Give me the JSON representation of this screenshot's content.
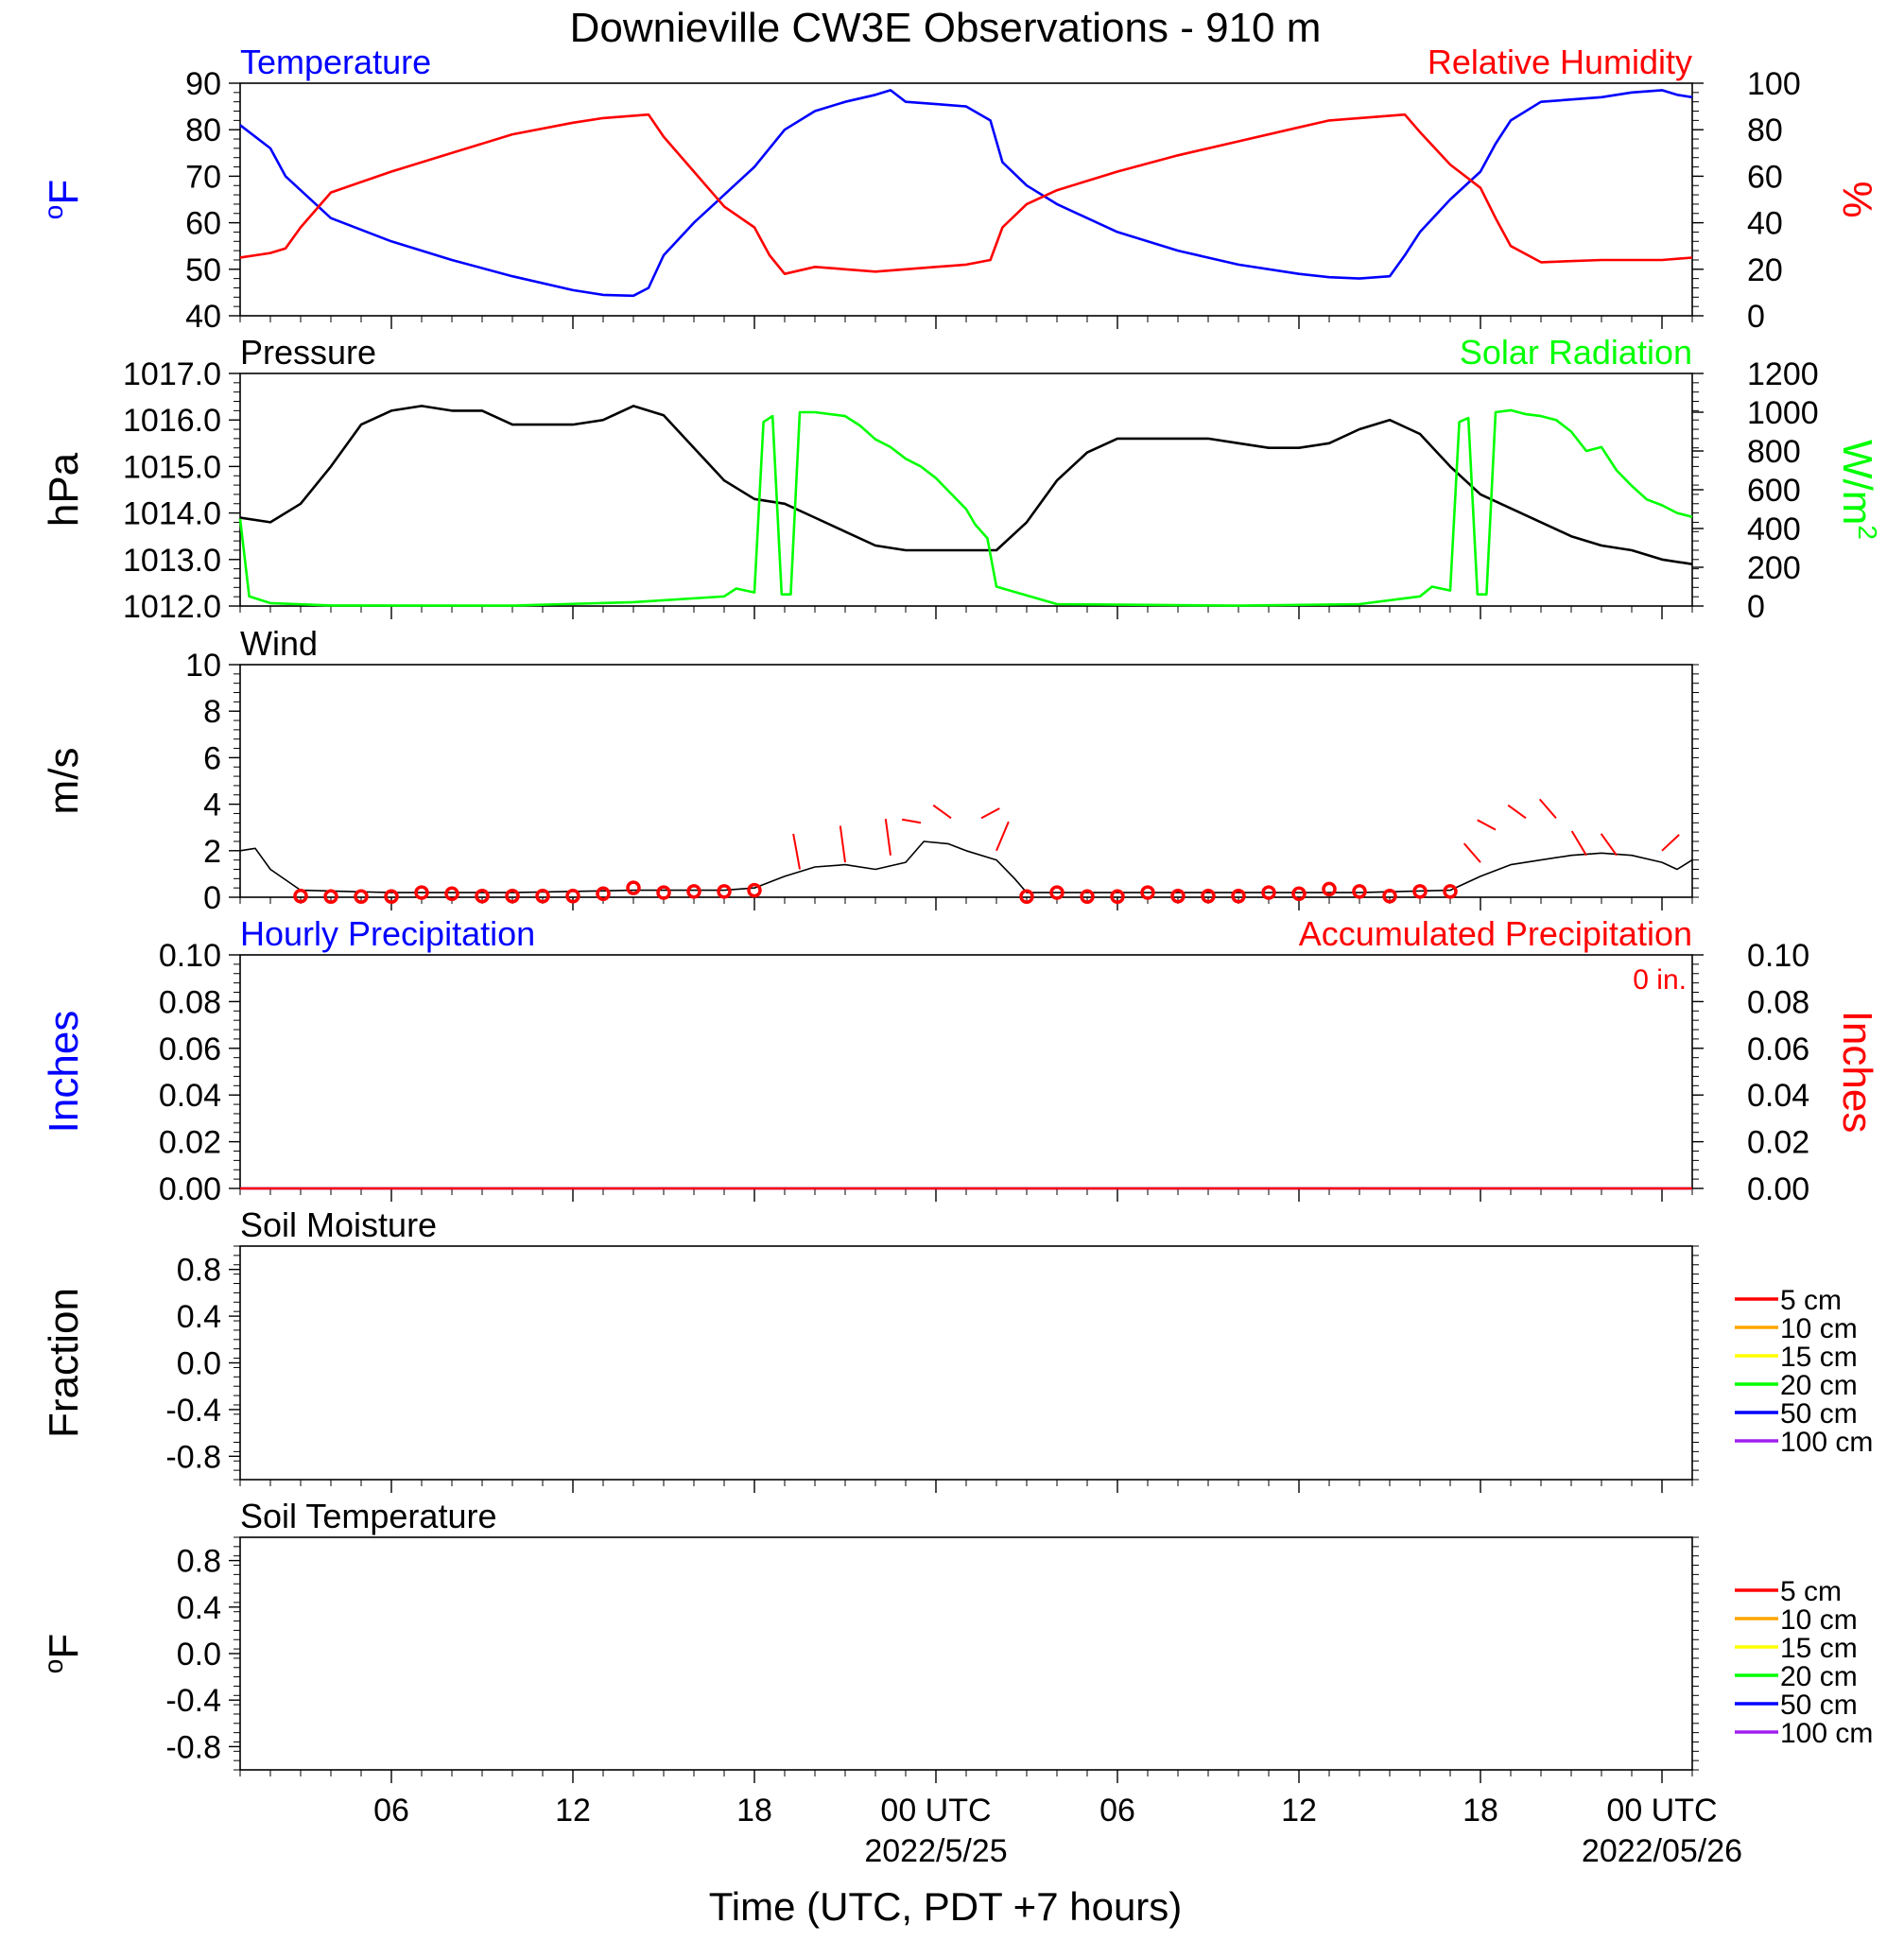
{
  "title": "Downieville CW3E Observations - 910 m",
  "xlabel": "Time (UTC, PDT +7 hours)",
  "time_axis": {
    "range_hours": [
      1,
      49
    ],
    "tick_hours": [
      6,
      12,
      18,
      24,
      30,
      36,
      42,
      48
    ],
    "tick_labels": [
      "06",
      "12",
      "18",
      "00 UTC",
      "06",
      "12",
      "18",
      "00 UTC"
    ],
    "date_labels": [
      {
        "hour": 24,
        "label": "2022/5/25"
      },
      {
        "hour": 48,
        "label": "2022/05/26"
      }
    ]
  },
  "colors": {
    "temperature": "#0000ff",
    "humidity": "#ff0000",
    "pressure": "#000000",
    "solar": "#00ff00",
    "wind": "#000000",
    "barb": "#ff0000",
    "hourly_precip": "#0000ff",
    "accum_precip": "#ff0000"
  },
  "chart_data": [
    {
      "type": "line",
      "panel": "temperature_humidity",
      "title_left": "Temperature",
      "title_right": "Relative Humidity",
      "ylabel_left": "oF",
      "ylabel_right": "%",
      "ylim_left": [
        40,
        90
      ],
      "yticks_left": [
        "40",
        "50",
        "60",
        "70",
        "80",
        "90"
      ],
      "ylim_right": [
        0,
        100
      ],
      "yticks_right": [
        "0",
        "20",
        "40",
        "60",
        "80",
        "100"
      ],
      "series": [
        {
          "name": "Temperature",
          "axis": "left",
          "x": [
            1,
            2,
            2.5,
            3,
            4,
            6,
            8,
            10,
            12,
            13,
            14,
            14.5,
            15,
            16,
            17,
            18,
            19,
            20,
            21,
            22,
            22.5,
            23,
            24,
            25,
            25.8,
            26.2,
            27,
            28,
            30,
            32,
            34,
            36,
            37,
            38,
            39,
            39.5,
            40,
            41,
            42,
            42.5,
            43,
            44,
            46,
            47,
            48,
            48.5,
            49
          ],
          "values": [
            81,
            76,
            70,
            67,
            61,
            56,
            52,
            48.5,
            45.5,
            44.5,
            44.3,
            46,
            53,
            60,
            66,
            72,
            80,
            84,
            86,
            87.5,
            88.5,
            86,
            85.5,
            85,
            82,
            73,
            68,
            64,
            58,
            54,
            51,
            49,
            48.3,
            48,
            48.5,
            53,
            58,
            65,
            71,
            77,
            82,
            86,
            87,
            88,
            88.5,
            87.5,
            87
          ]
        },
        {
          "name": "Relative Humidity",
          "axis": "right",
          "x": [
            1,
            2,
            2.5,
            3,
            4,
            6,
            8,
            10,
            12,
            13,
            14,
            14.5,
            15,
            16,
            17,
            18,
            18.5,
            19,
            20,
            22,
            24,
            25,
            25.8,
            26.2,
            27,
            28,
            30,
            32,
            34,
            36,
            37,
            38,
            39,
            39.5,
            40,
            41,
            42,
            42.5,
            43,
            44,
            46,
            48,
            49
          ],
          "values": [
            25,
            27,
            29,
            38,
            53,
            62,
            70,
            78,
            83,
            85,
            86,
            86.5,
            77,
            62,
            47,
            38,
            26,
            18,
            21,
            19,
            21,
            22,
            24,
            38,
            48,
            54,
            62,
            69,
            75,
            81,
            84,
            85,
            86,
            86.5,
            79,
            65,
            55,
            42,
            30,
            23,
            24,
            24,
            25
          ]
        }
      ]
    },
    {
      "type": "line",
      "panel": "pressure_solar",
      "title_left": "Pressure",
      "title_right": "Solar Radiation",
      "ylabel_left": "hPa",
      "ylabel_right": "W/m2",
      "ylim_left": [
        1012.0,
        1017.0
      ],
      "yticks_left": [
        "1012.0",
        "1013.0",
        "1014.0",
        "1015.0",
        "1016.0",
        "1017.0"
      ],
      "ylim_right": [
        0,
        1200
      ],
      "yticks_right": [
        "0",
        "200",
        "400",
        "600",
        "800",
        "1000",
        "1200"
      ],
      "series": [
        {
          "name": "Pressure",
          "axis": "left",
          "x": [
            1,
            2,
            3,
            4,
            5,
            6,
            7,
            8,
            9,
            10,
            11,
            12,
            13,
            14,
            15,
            16,
            17,
            18,
            19,
            20,
            21,
            22,
            23,
            24,
            25,
            26,
            27,
            28,
            29,
            30,
            31,
            32,
            33,
            34,
            35,
            36,
            37,
            38,
            39,
            40,
            41,
            42,
            43,
            44,
            45,
            46,
            47,
            48,
            49
          ],
          "values": [
            1013.9,
            1013.8,
            1014.2,
            1015.0,
            1015.9,
            1016.2,
            1016.3,
            1016.2,
            1016.2,
            1015.9,
            1015.9,
            1015.9,
            1016.0,
            1016.3,
            1016.1,
            1015.4,
            1014.7,
            1014.3,
            1014.2,
            1013.9,
            1013.6,
            1013.3,
            1013.2,
            1013.2,
            1013.2,
            1013.2,
            1013.8,
            1014.7,
            1015.3,
            1015.6,
            1015.6,
            1015.6,
            1015.6,
            1015.5,
            1015.4,
            1015.4,
            1015.5,
            1015.8,
            1016.0,
            1015.7,
            1015.0,
            1014.4,
            1014.1,
            1013.8,
            1013.5,
            1013.3,
            1013.2,
            1013.0,
            1012.9
          ]
        },
        {
          "name": "Solar Radiation",
          "axis": "right",
          "x": [
            1,
            1.3,
            2,
            4,
            10,
            14,
            17,
            17.4,
            18,
            18.3,
            18.6,
            18.9,
            19.2,
            19.5,
            20,
            21,
            21.5,
            22,
            22.5,
            23,
            23.5,
            24,
            24.5,
            25,
            25.3,
            25.7,
            26,
            28,
            34,
            38,
            40,
            40.4,
            41,
            41.3,
            41.6,
            41.9,
            42.2,
            42.5,
            43,
            43.5,
            44,
            44.5,
            45,
            45.5,
            46,
            46.5,
            47,
            47.5,
            48,
            48.5,
            49
          ],
          "values": [
            450,
            50,
            15,
            3,
            2,
            20,
            50,
            90,
            70,
            950,
            980,
            60,
            60,
            1000,
            1000,
            980,
            930,
            860,
            820,
            760,
            720,
            660,
            580,
            500,
            420,
            350,
            100,
            10,
            2,
            10,
            50,
            100,
            80,
            950,
            970,
            60,
            60,
            1000,
            1010,
            990,
            980,
            960,
            900,
            800,
            820,
            700,
            620,
            550,
            520,
            480,
            460
          ]
        }
      ]
    },
    {
      "type": "line",
      "panel": "wind",
      "title_left": "Wind",
      "ylabel_left": "m/s",
      "ylim_left": [
        0,
        10
      ],
      "yticks_left": [
        "0",
        "2",
        "4",
        "6",
        "8",
        "10"
      ],
      "series": [
        {
          "name": "Wind",
          "axis": "left",
          "x": [
            1,
            1.5,
            2,
            3,
            6,
            10,
            14,
            17,
            18,
            19,
            20,
            21,
            22,
            23,
            23.6,
            24.4,
            25,
            26,
            26.6,
            27,
            30,
            34,
            38,
            41,
            42,
            43,
            44,
            45,
            46,
            47,
            48,
            48.5,
            49
          ],
          "values": [
            2.0,
            2.1,
            1.2,
            0.3,
            0.2,
            0.2,
            0.3,
            0.3,
            0.4,
            0.9,
            1.3,
            1.4,
            1.2,
            1.5,
            2.4,
            2.3,
            2.0,
            1.6,
            0.8,
            0.2,
            0.2,
            0.2,
            0.2,
            0.3,
            0.9,
            1.4,
            1.6,
            1.8,
            1.9,
            1.8,
            1.5,
            1.2,
            1.6
          ]
        }
      ],
      "calm_markers": {
        "x": [
          3,
          4,
          5,
          6,
          7,
          8,
          9,
          10,
          11,
          12,
          13,
          14,
          15,
          16,
          17,
          18,
          27,
          28,
          29,
          30,
          31,
          32,
          33,
          34,
          35,
          36,
          37,
          38,
          39,
          40,
          41
        ],
        "values": [
          0.05,
          0.03,
          0.03,
          0.03,
          0.2,
          0.15,
          0.05,
          0.05,
          0.05,
          0.05,
          0.15,
          0.4,
          0.2,
          0.25,
          0.25,
          0.3,
          0.03,
          0.2,
          0.03,
          0.03,
          0.2,
          0.05,
          0.05,
          0.05,
          0.2,
          0.15,
          0.35,
          0.25,
          0.05,
          0.25,
          0.25
        ]
      },
      "barbs": {
        "x": [
          19.5,
          21,
          22.5,
          23.5,
          24.5,
          25.5,
          26,
          42,
          42.5,
          43.5,
          44.5,
          45.5,
          46.5,
          48
        ],
        "values": [
          1.2,
          1.5,
          1.8,
          3.2,
          3.4,
          3.4,
          2.0,
          1.5,
          2.9,
          3.4,
          3.4,
          1.8,
          1.8,
          2.0
        ],
        "angle_deg": [
          110,
          105,
          105,
          175,
          160,
          15,
          50,
          150,
          165,
          160,
          150,
          140,
          145,
          25
        ]
      }
    },
    {
      "type": "line",
      "panel": "precipitation",
      "title_left": "Hourly Precipitation",
      "title_right": "Accumulated Precipitation",
      "annotation": "0 in.",
      "ylabel_left": "Inches",
      "ylabel_right": "Inches",
      "ylim_left": [
        0,
        0.1
      ],
      "yticks_left": [
        "0.00",
        "0.02",
        "0.04",
        "0.06",
        "0.08",
        "0.10"
      ],
      "ylim_right": [
        0,
        0.1
      ],
      "yticks_right": [
        "0.00",
        "0.02",
        "0.04",
        "0.06",
        "0.08",
        "0.10"
      ],
      "series": [
        {
          "name": "Hourly Precipitation",
          "axis": "left",
          "x": [
            1,
            49
          ],
          "values": [
            0,
            0
          ]
        },
        {
          "name": "Accumulated Precipitation",
          "axis": "right",
          "x": [
            1,
            49
          ],
          "values": [
            0,
            0
          ]
        }
      ]
    },
    {
      "type": "line",
      "panel": "soil_moisture",
      "title_left": "Soil Moisture",
      "ylabel_left": "Fraction",
      "ylim_left": [
        -1,
        1
      ],
      "yticks_left": [
        "-0.8",
        "-0.4",
        "0.0",
        "0.4",
        "0.8"
      ],
      "legend": [
        {
          "label": "5 cm",
          "color": "#ff0000"
        },
        {
          "label": "10 cm",
          "color": "#ffa500"
        },
        {
          "label": "15 cm",
          "color": "#ffff00"
        },
        {
          "label": "20 cm",
          "color": "#00ff00"
        },
        {
          "label": "50 cm",
          "color": "#0000ff"
        },
        {
          "label": "100 cm",
          "color": "#a020f0"
        }
      ],
      "series": []
    },
    {
      "type": "line",
      "panel": "soil_temperature",
      "title_left": "Soil Temperature",
      "ylabel_left": "oF",
      "ylim_left": [
        -1,
        1
      ],
      "yticks_left": [
        "-0.8",
        "-0.4",
        "0.0",
        "0.4",
        "0.8"
      ],
      "legend": [
        {
          "label": "5 cm",
          "color": "#ff0000"
        },
        {
          "label": "10 cm",
          "color": "#ffa500"
        },
        {
          "label": "15 cm",
          "color": "#ffff00"
        },
        {
          "label": "20 cm",
          "color": "#00ff00"
        },
        {
          "label": "50 cm",
          "color": "#0000ff"
        },
        {
          "label": "100 cm",
          "color": "#a020f0"
        }
      ],
      "series": []
    }
  ]
}
